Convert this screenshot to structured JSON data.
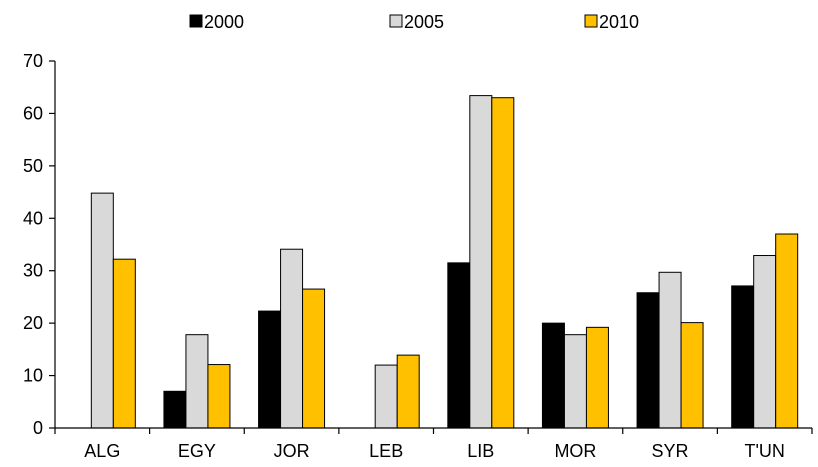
{
  "chart_data": {
    "type": "bar",
    "categories": [
      "ALG",
      "EGY",
      "JOR",
      "LEB",
      "LIB",
      "MOR",
      "SYR",
      "T'UN"
    ],
    "series": [
      {
        "name": "2000",
        "color": "#000000",
        "values": [
          null,
          7,
          22.3,
          null,
          31.5,
          20,
          25.8,
          27.1
        ]
      },
      {
        "name": "2005",
        "color": "#d9d9d9",
        "values": [
          44.8,
          17.8,
          34.1,
          12,
          63.4,
          17.8,
          29.7,
          32.9
        ]
      },
      {
        "name": "2010",
        "color": "#ffc000",
        "values": [
          32.2,
          12.1,
          26.5,
          13.9,
          63,
          19.2,
          20.1,
          37
        ]
      }
    ],
    "yticks": [
      "0",
      "10",
      "20",
      "30",
      "40",
      "50",
      "60",
      "70"
    ],
    "ylim": [
      0,
      70
    ],
    "grid": false,
    "legend_position": "top-center",
    "title": "",
    "xlabel": "",
    "ylabel": ""
  }
}
